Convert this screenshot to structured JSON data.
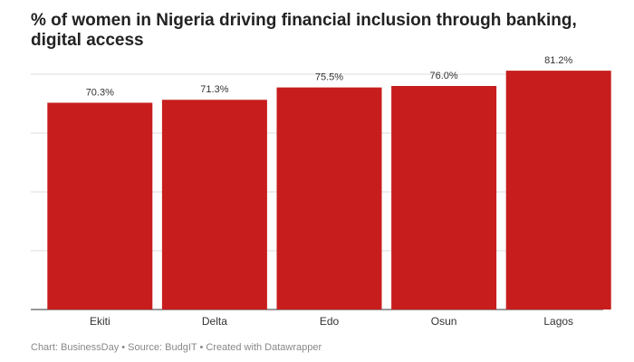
{
  "chart_data": {
    "type": "bar",
    "title": "% of women in Nigeria driving financial inclusion through banking, digital access",
    "categories": [
      "Ekiti",
      "Delta",
      "Edo",
      "Osun",
      "Lagos"
    ],
    "values": [
      70.3,
      71.3,
      75.5,
      76.0,
      81.2
    ],
    "value_labels": [
      "70.3%",
      "71.3%",
      "75.5%",
      "76.0%",
      "81.2%"
    ],
    "color": "#c71e1d",
    "ylim": [
      0,
      80
    ],
    "yticks": [
      0,
      20,
      40,
      60,
      80
    ],
    "grid": true,
    "source": "Chart: BusinessDay • Source: BudgIT • Created with Datawrapper"
  }
}
